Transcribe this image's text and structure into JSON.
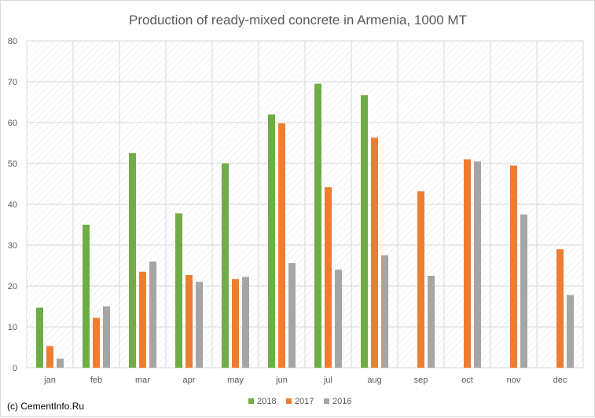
{
  "chart_data": {
    "type": "bar",
    "title": "Production of ready-mixed concrete in Armenia, 1000 MT",
    "xlabel": "",
    "ylabel": "",
    "categories": [
      "jan",
      "feb",
      "mar",
      "apr",
      "may",
      "jun",
      "jul",
      "aug",
      "sep",
      "oct",
      "nov",
      "dec"
    ],
    "series": [
      {
        "name": "2018",
        "color": "#70ad47",
        "values": [
          14.7,
          35.0,
          52.5,
          37.8,
          50.0,
          62.0,
          69.5,
          66.7,
          null,
          null,
          null,
          null
        ]
      },
      {
        "name": "2017",
        "color": "#ed7d31",
        "values": [
          5.3,
          12.2,
          23.5,
          22.7,
          21.7,
          59.8,
          44.2,
          56.3,
          43.2,
          51.0,
          49.5,
          29.0
        ]
      },
      {
        "name": "2016",
        "color": "#a5a5a5",
        "values": [
          2.2,
          15.0,
          26.0,
          21.0,
          22.2,
          25.6,
          24.0,
          27.5,
          22.5,
          50.5,
          37.5,
          17.8
        ]
      }
    ],
    "ylim": [
      0,
      80
    ],
    "yticks": [
      0,
      10,
      20,
      30,
      40,
      50,
      60,
      70,
      80
    ],
    "grid": true,
    "legend": "bottom-center"
  },
  "credit": "(c) CementInfo.Ru"
}
